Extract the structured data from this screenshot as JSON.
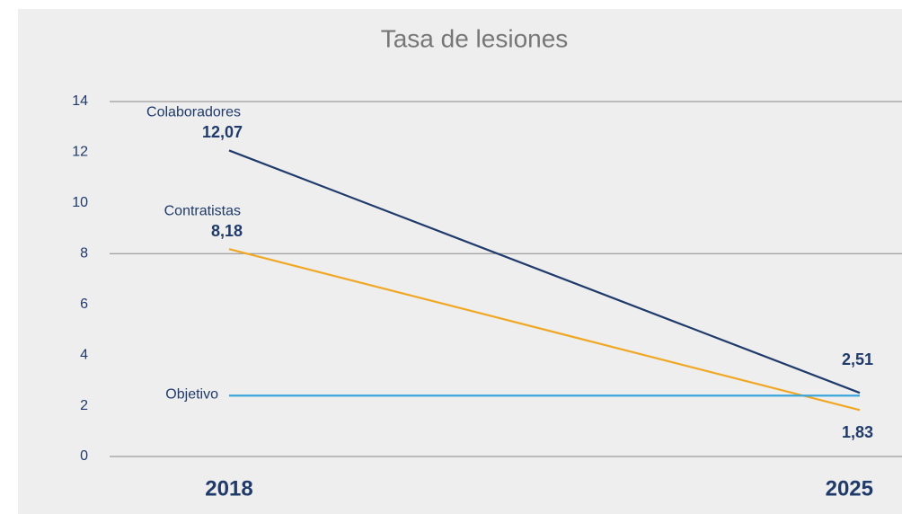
{
  "chart_data": {
    "type": "line",
    "title": "Tasa de lesiones",
    "categories": [
      "2018",
      "2025"
    ],
    "series": [
      {
        "name": "Colaboradores",
        "color": "#1f3a6b",
        "values": [
          12.07,
          2.51
        ],
        "value_labels": [
          "12,07",
          "2,51"
        ]
      },
      {
        "name": "Contratistas",
        "color": "#f0a824",
        "values": [
          8.18,
          1.83
        ],
        "value_labels": [
          "8,18",
          "1,83"
        ]
      },
      {
        "name": "Objetivo",
        "color": "#3aa6dc",
        "values": [
          2.4,
          2.4
        ]
      }
    ],
    "ylim": [
      0,
      14
    ],
    "yticks": [
      0,
      2,
      4,
      6,
      8,
      10,
      12,
      14
    ],
    "gridlines": [
      0,
      8,
      14
    ]
  }
}
